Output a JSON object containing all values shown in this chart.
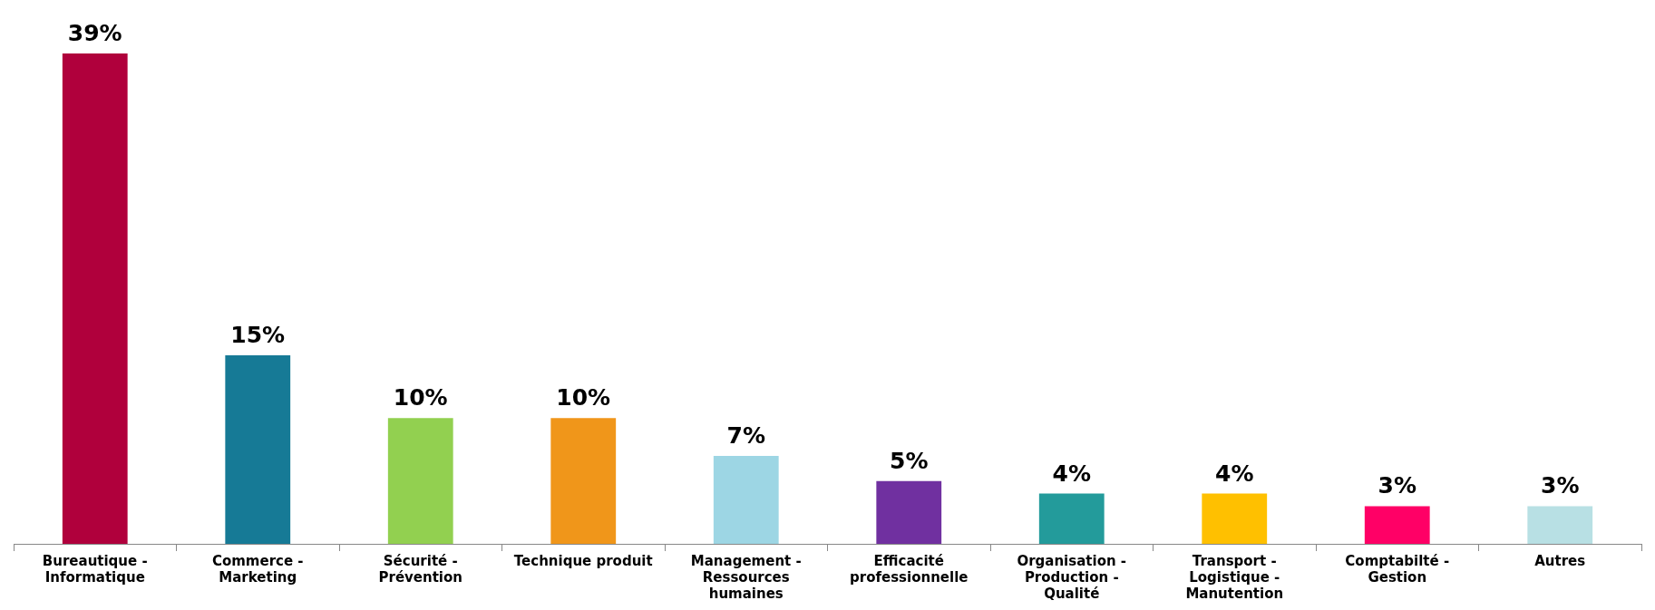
{
  "chart_data": {
    "type": "bar",
    "categories": [
      "Bureautique - Informatique",
      "Commerce - Marketing",
      "Sécurité - Prévention",
      "Technique produit",
      "Management - Ressources humaines",
      "Efficacité professionnelle",
      "Organisation - Production - Qualité",
      "Transport - Logistique - Manutention",
      "Comptabilté - Gestion",
      "Autres"
    ],
    "values": [
      39,
      15,
      10,
      10,
      7,
      5,
      4,
      4,
      3,
      3
    ],
    "value_labels": [
      "39%",
      "15%",
      "10%",
      "10%",
      "7%",
      "5%",
      "4%",
      "4%",
      "3%",
      "3%"
    ],
    "colors": [
      "#b0003c",
      "#167a96",
      "#92d050",
      "#f0961a",
      "#9dd6e4",
      "#7030a0",
      "#239b9b",
      "#ffc000",
      "#ff0066",
      "#b8e0e4"
    ],
    "grid": false,
    "legend": false
  }
}
